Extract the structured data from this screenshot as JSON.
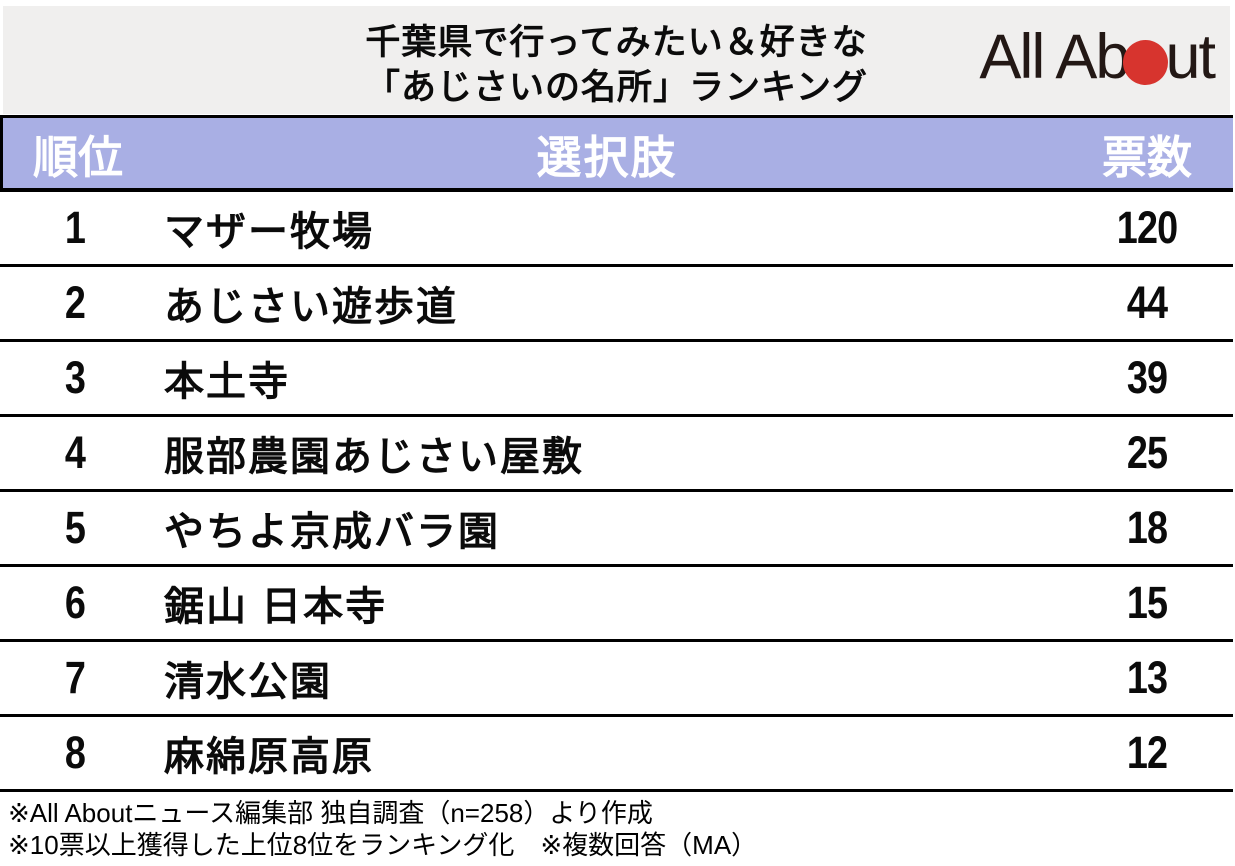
{
  "chart_data": {
    "type": "table",
    "title": "千葉県で行ってみたい＆好きな「あじさいの名所」ランキング",
    "columns": [
      "順位",
      "選択肢",
      "票数"
    ],
    "rows": [
      [
        1,
        "マザー牧場",
        120
      ],
      [
        2,
        "あじさい遊歩道",
        44
      ],
      [
        3,
        "本土寺",
        39
      ],
      [
        4,
        "服部農園あじさい屋敷",
        25
      ],
      [
        5,
        "やちよ京成バラ園",
        18
      ],
      [
        6,
        "鋸山 日本寺",
        15
      ],
      [
        7,
        "清水公園",
        13
      ],
      [
        8,
        "麻綿原高原",
        12
      ]
    ],
    "source_notes": [
      "※All Aboutニュース編集部 独自調査（n=258）より作成",
      "※10票以上獲得した上位8位をランキング化　※複数回答（MA）"
    ]
  },
  "header": {
    "title_line1": "千葉県で行ってみたい＆好きな",
    "title_line2": "「あじさいの名所」ランキング",
    "logo": {
      "text_before": "All Ab",
      "text_after": "ut",
      "dot_color": "#d7342e"
    }
  },
  "colors": {
    "title_band_bg": "#f0efee",
    "table_header_bg": "#a9afe4",
    "table_header_text": "#ffffff",
    "row_divider": "#000000",
    "logo_text": "#231815",
    "accent_red": "#d7342e"
  }
}
